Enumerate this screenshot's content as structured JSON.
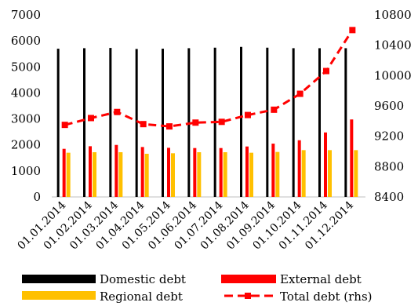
{
  "chart_data": {
    "type": "bar",
    "categories": [
      "01.01.2014",
      "01.02.2014",
      "01.03.2014",
      "01.04.2014",
      "01.05.2014",
      "01.06.2014",
      "01.07.2014",
      "01.08.2014",
      "01.09.2014",
      "01.10.2014",
      "01.11.2014",
      "01.12.2014"
    ],
    "series": [
      {
        "name": "Domestic debt",
        "type": "bar",
        "axis": "left",
        "color": "#000000",
        "values": [
          5700,
          5720,
          5730,
          5690,
          5700,
          5720,
          5740,
          5770,
          5740,
          5720,
          5720,
          5720
        ]
      },
      {
        "name": "External debt",
        "type": "bar",
        "axis": "left",
        "color": "#ff0000",
        "values": [
          1850,
          1950,
          2000,
          1920,
          1890,
          1880,
          1880,
          1940,
          2050,
          2180,
          2480,
          2980
        ]
      },
      {
        "name": "Regional debt",
        "type": "bar",
        "axis": "left",
        "color": "#ffc000",
        "values": [
          1700,
          1720,
          1720,
          1660,
          1680,
          1720,
          1720,
          1700,
          1730,
          1800,
          1800,
          1800
        ]
      },
      {
        "name": "Total debt (rhs)",
        "type": "line",
        "axis": "right",
        "color": "#ff0000",
        "dashed": true,
        "values": [
          9350,
          9440,
          9520,
          9360,
          9330,
          9380,
          9390,
          9480,
          9550,
          9760,
          10060,
          10600
        ]
      }
    ],
    "yaxis_left": {
      "min": 0,
      "max": 7000,
      "ticks": [
        "0",
        "1000",
        "2000",
        "3000",
        "4000",
        "5000",
        "6000",
        "7000"
      ]
    },
    "yaxis_right": {
      "min": 8400,
      "max": 10800,
      "ticks": [
        "8400",
        "8800",
        "9200",
        "9600",
        "10000",
        "10400",
        "10800"
      ]
    },
    "grid": false,
    "legend_position": "bottom"
  }
}
